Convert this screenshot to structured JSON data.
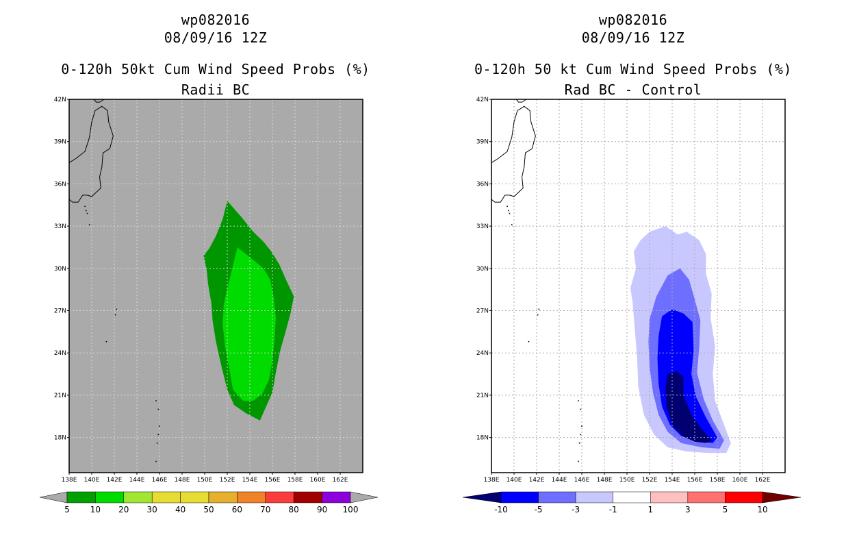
{
  "left_panel": {
    "title_line1": "wp082016",
    "title_line2": "08/09/16 12Z",
    "title_line3": "0-120h 50kt Cum Wind Speed Probs (%)",
    "subtitle": "Radii BC"
  },
  "right_panel": {
    "title_line1": "wp082016",
    "title_line2": "08/09/16 12Z",
    "title_line3": "0-120h 50 kt Cum Wind Speed Probs (%)",
    "subtitle": "Rad BC - Control"
  },
  "chart_data": [
    {
      "type": "heatmap",
      "title": "0-120h 50kt Cum Wind Speed Probs (%) Radii BC",
      "x_tick_labels": [
        "138E",
        "140E",
        "142E",
        "144E",
        "146E",
        "148E",
        "150E",
        "152E",
        "154E",
        "156E",
        "158E",
        "160E",
        "162E"
      ],
      "y_tick_labels": [
        "42N",
        "39N",
        "36N",
        "33N",
        "30N",
        "27N",
        "24N",
        "21N",
        "18N"
      ],
      "xlim": [
        138,
        164
      ],
      "ylim": [
        15.5,
        42
      ],
      "grid": true,
      "background_color": "#aaaaaa",
      "colorbar": {
        "labels": [
          "5",
          "10",
          "20",
          "30",
          "40",
          "50",
          "60",
          "70",
          "80",
          "90",
          "100"
        ],
        "colors": [
          "#00a000",
          "#00dc00",
          "#a0e632",
          "#e6dc32",
          "#e6dc32",
          "#e6af2d",
          "#f08228",
          "#fa3c3c",
          "#a00000",
          "#8c00dc"
        ],
        "low_arrow_color": "#aaaaaa",
        "high_arrow_color": "#aaaaaa"
      },
      "contour_levels": [
        {
          "level": "5-10",
          "color": "#009600"
        },
        {
          "level": "10-20",
          "color": "#00dc00"
        }
      ]
    },
    {
      "type": "heatmap",
      "title": "0-120h 50 kt Cum Wind Speed Probs (%) Rad BC - Control",
      "x_tick_labels": [
        "138E",
        "140E",
        "142E",
        "144E",
        "146E",
        "148E",
        "150E",
        "152E",
        "154E",
        "156E",
        "158E",
        "160E",
        "162E"
      ],
      "y_tick_labels": [
        "42N",
        "39N",
        "36N",
        "33N",
        "30N",
        "27N",
        "24N",
        "21N",
        "18N"
      ],
      "xlim": [
        138,
        164
      ],
      "ylim": [
        15.5,
        42
      ],
      "grid": true,
      "background_color": "#ffffff",
      "colorbar": {
        "labels": [
          "-10",
          "-5",
          "-3",
          "-1",
          "1",
          "3",
          "5",
          "10"
        ],
        "colors": [
          "#0000ff",
          "#6e6eff",
          "#c8c8ff",
          "#ffffff",
          "#ffc0c0",
          "#ff7070",
          "#ff0000"
        ],
        "low_arrow_color": "#000070",
        "high_arrow_color": "#700000"
      },
      "contour_levels": [
        {
          "level": "-3 to -1",
          "color": "#c8c8ff"
        },
        {
          "level": "-5 to -3",
          "color": "#6e6eff"
        },
        {
          "level": "-10 to -5",
          "color": "#0000ff"
        },
        {
          "level": "< -10",
          "color": "#000070"
        }
      ]
    }
  ]
}
